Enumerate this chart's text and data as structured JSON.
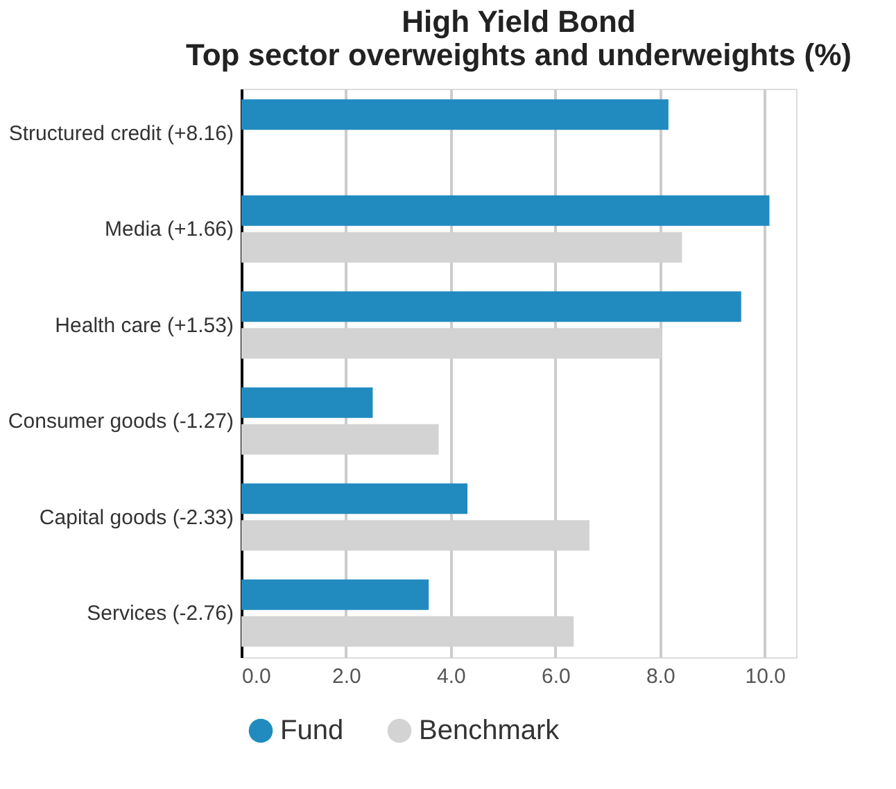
{
  "chart_data": {
    "type": "bar",
    "orientation": "horizontal",
    "title": [
      "High Yield Bond",
      "Top sector overweights and underweights (%)"
    ],
    "categories": [
      "Structured credit (+8.16)",
      "Media (+1.66)",
      "Health care (+1.53)",
      "Consumer goods (-1.27)",
      "Capital goods (-2.33)",
      "Services (-2.76)"
    ],
    "series": [
      {
        "name": "Fund",
        "color": "#218bbf",
        "values": [
          8.16,
          10.09,
          9.55,
          2.51,
          4.32,
          3.58
        ]
      },
      {
        "name": "Benchmark",
        "color": "#d3d3d3",
        "values": [
          null,
          8.42,
          8.03,
          3.77,
          6.65,
          6.35
        ]
      }
    ],
    "xlim": [
      0,
      10.6
    ],
    "xticks": [
      {
        "value": 0,
        "label": "0.0"
      },
      {
        "value": 2,
        "label": "2.0"
      },
      {
        "value": 4,
        "label": "4.0"
      },
      {
        "value": 6,
        "label": "6.0"
      },
      {
        "value": 8,
        "label": "8.0"
      },
      {
        "value": 10,
        "label": "10.0"
      }
    ],
    "grid": "x",
    "legend": "bottom"
  }
}
